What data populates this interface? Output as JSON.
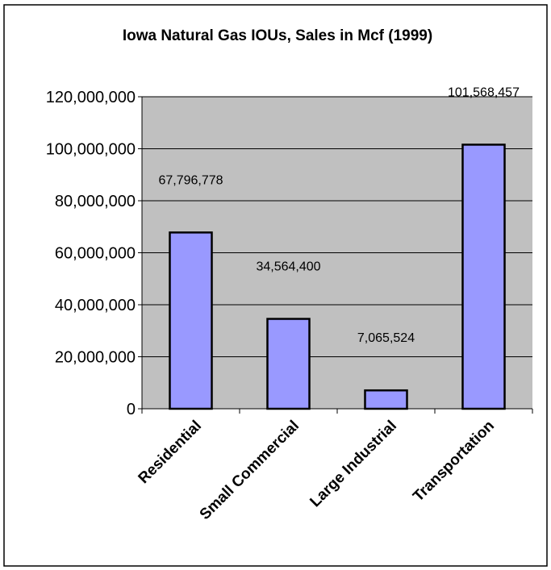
{
  "chart_data": {
    "type": "bar",
    "title": "Iowa Natural Gas IOUs, Sales in Mcf (1999)",
    "xlabel": "",
    "ylabel": "",
    "categories": [
      "Residential",
      "Small Commercial",
      "Large Industrial",
      "Transportation"
    ],
    "values": [
      67796778,
      34564400,
      7065524,
      101568457
    ],
    "data_labels": [
      "67,796,778",
      "34,564,400",
      "7,065,524",
      "101,568,457"
    ],
    "ylim": [
      0,
      120000000
    ],
    "y_ticks": [
      0,
      20000000,
      40000000,
      60000000,
      80000000,
      100000000,
      120000000
    ],
    "y_tick_labels": [
      "0",
      "20,000,000",
      "40,000,000",
      "60,000,000",
      "80,000,000",
      "100,000,000",
      "120,000,000"
    ],
    "grid": true,
    "legend": "none",
    "colors": {
      "plot_background": "#c0c0c0",
      "bar_fill": "#9999ff",
      "bar_stroke": "#000000",
      "gridline": "#000000",
      "frame": "#000000"
    }
  }
}
